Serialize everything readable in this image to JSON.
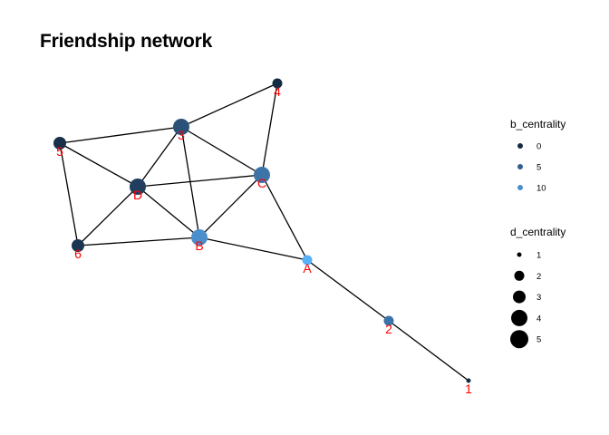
{
  "title": "Friendship network",
  "nodes": [
    {
      "id": "A",
      "label": "A",
      "color": "#56B1F7",
      "size": 2
    },
    {
      "id": "B",
      "label": "B",
      "color": "#4A8FCC",
      "size": 4
    },
    {
      "id": "C",
      "label": "C",
      "color": "#3D74A8",
      "size": 4
    },
    {
      "id": "D",
      "label": "D",
      "color": "#213E5E",
      "size": 4
    },
    {
      "id": "3",
      "label": "3",
      "color": "#2A5177",
      "size": 4
    },
    {
      "id": "4",
      "label": "4",
      "color": "#132B43",
      "size": 2
    },
    {
      "id": "5",
      "label": "5",
      "color": "#18304A",
      "size": 3
    },
    {
      "id": "6",
      "label": "6",
      "color": "#1B3550",
      "size": 3
    },
    {
      "id": "2",
      "label": "2",
      "color": "#3D74A8",
      "size": 2
    },
    {
      "id": "1",
      "label": "1",
      "color": "#132B43",
      "size": 1
    }
  ],
  "edges": [
    [
      "3",
      "4"
    ],
    [
      "4",
      "C"
    ],
    [
      "5",
      "3"
    ],
    [
      "3",
      "D"
    ],
    [
      "3",
      "C"
    ],
    [
      "3",
      "B"
    ],
    [
      "5",
      "D"
    ],
    [
      "5",
      "6"
    ],
    [
      "D",
      "C"
    ],
    [
      "D",
      "6"
    ],
    [
      "D",
      "B"
    ],
    [
      "6",
      "B"
    ],
    [
      "C",
      "B"
    ],
    [
      "C",
      "A"
    ],
    [
      "B",
      "A"
    ],
    [
      "A",
      "2"
    ],
    [
      "2",
      "1"
    ]
  ],
  "legend_color": {
    "title": "b_centrality",
    "items": [
      {
        "label": "0",
        "color": "#132B43"
      },
      {
        "label": "5",
        "color": "#2F608F"
      },
      {
        "label": "10",
        "color": "#4A8FCC"
      }
    ]
  },
  "legend_size": {
    "title": "d_centrality",
    "color": "#000000",
    "items": [
      {
        "label": "1",
        "value": 1
      },
      {
        "label": "2",
        "value": 2
      },
      {
        "label": "3",
        "value": 3
      },
      {
        "label": "4",
        "value": 4
      },
      {
        "label": "5",
        "value": 5
      }
    ]
  }
}
